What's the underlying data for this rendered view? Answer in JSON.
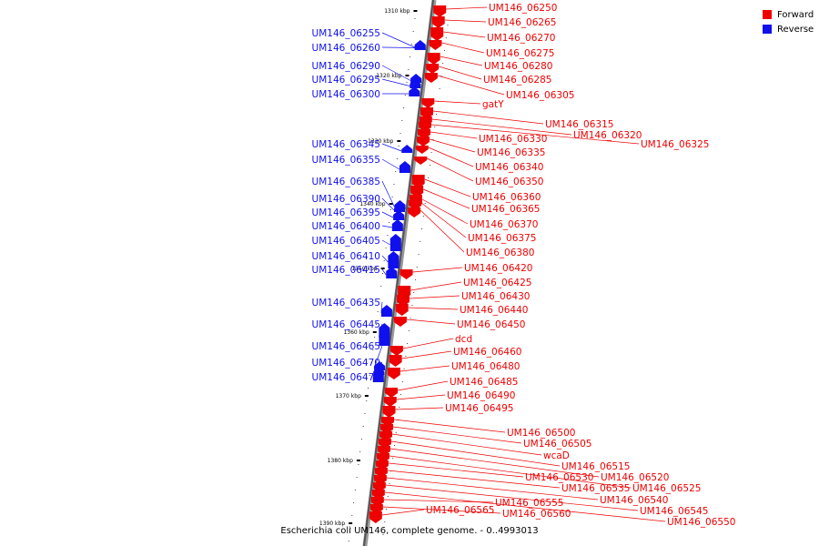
{
  "caption": "Escherichia coli UM146, complete genome. - 0..4993013",
  "legend": [
    {
      "label": "Forward",
      "color": "#ee0000"
    },
    {
      "label": "Reverse",
      "color": "#1010ee"
    }
  ],
  "ticks": [
    "1310 kbp",
    "1320 kbp",
    "1330 kbp",
    "1340 kbp",
    "1350 kbp",
    "1360 kbp",
    "1370 kbp",
    "1380 kbp",
    "1390 kbp"
  ],
  "reverse_genes": [
    "UM146_06255",
    "UM146_06260",
    "UM146_06290",
    "UM146_06295",
    "UM146_06300",
    "UM146_06345",
    "UM146_06355",
    "UM146_06385",
    "UM146_06390",
    "UM146_06395",
    "UM146_06400",
    "UM146_06405",
    "UM146_06410",
    "UM146_06415",
    "UM146_06435",
    "UM146_06445",
    "UM146_06465",
    "UM146_06470",
    "UM146_06475"
  ],
  "forward_genes": [
    "UM146_06250",
    "UM146_06265",
    "UM146_06270",
    "UM146_06275",
    "UM146_06280",
    "UM146_06285",
    "UM146_06305",
    "gatY",
    "UM146_06315",
    "UM146_06320",
    "UM146_06325",
    "UM146_06330",
    "UM146_06335",
    "UM146_06340",
    "UM146_06350",
    "UM146_06360",
    "UM146_06365",
    "UM146_06370",
    "UM146_06375",
    "UM146_06380",
    "UM146_06420",
    "UM146_06425",
    "UM146_06430",
    "UM146_06440",
    "UM146_06450",
    "dcd",
    "UM146_06460",
    "UM146_06480",
    "UM146_06485",
    "UM146_06490",
    "UM146_06495",
    "UM146_06500",
    "UM146_06505",
    "wcaD",
    "UM146_06515",
    "UM146_06520",
    "UM146_06525",
    "UM146_06530",
    "UM146_06535",
    "UM146_06540",
    "UM146_06545",
    "UM146_06550",
    "UM146_06555",
    "UM146_06560",
    "UM146_06565"
  ]
}
